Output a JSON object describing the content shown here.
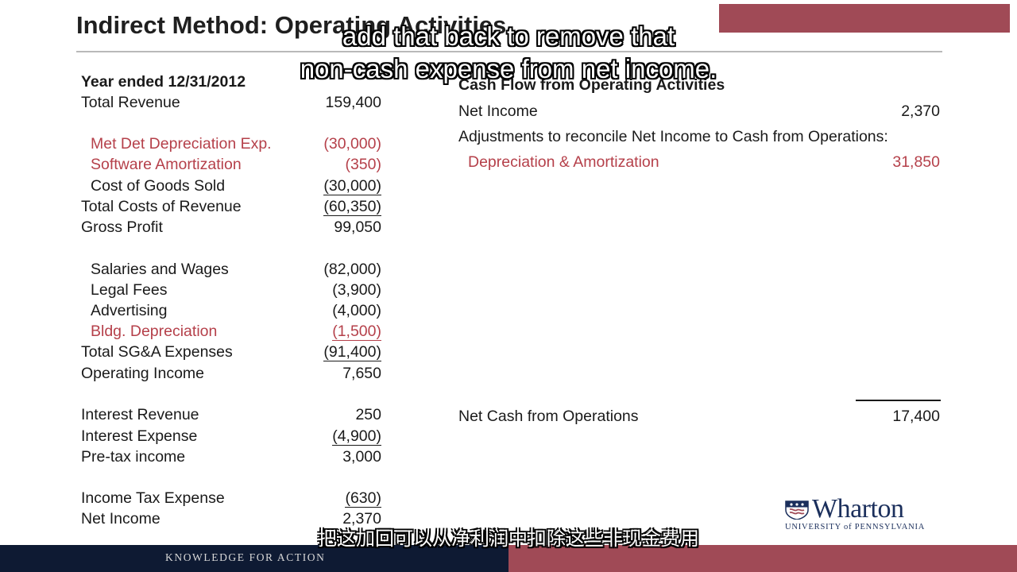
{
  "slide": {
    "title": "Indirect Method: Operating Activities"
  },
  "captions": {
    "english_line_1": "add that back to remove that",
    "english_line_2": "non-cash expense from net income.",
    "chinese": "把这加回可以从净利润中扣除这些非现金费用"
  },
  "income_statement": {
    "header": "Year ended 12/31/2012",
    "rows": [
      {
        "label": "Total Revenue",
        "value": "159,400"
      },
      {
        "label": "Met Det Depreciation Exp.",
        "value": "(30,000)"
      },
      {
        "label": "Software Amortization",
        "value": "(350)"
      },
      {
        "label": "Cost of Goods Sold",
        "value": "(30,000)"
      },
      {
        "label": "Total Costs of Revenue",
        "value": "(60,350)"
      },
      {
        "label": "Gross Profit",
        "value": "99,050"
      },
      {
        "label": "Salaries and Wages",
        "value": "(82,000)"
      },
      {
        "label": "Legal Fees",
        "value": "(3,900)"
      },
      {
        "label": "Advertising",
        "value": "(4,000)"
      },
      {
        "label": "Bldg. Depreciation",
        "value": "(1,500)"
      },
      {
        "label": "Total SG&A Expenses",
        "value": "(91,400)"
      },
      {
        "label": "Operating Income",
        "value": "7,650"
      },
      {
        "label": "Interest Revenue",
        "value": "250"
      },
      {
        "label": "Interest Expense",
        "value": "(4,900)"
      },
      {
        "label": "Pre-tax income",
        "value": "3,000"
      },
      {
        "label": "Income Tax Expense",
        "value": "(630)"
      },
      {
        "label": "Net Income",
        "value": "2,370"
      }
    ]
  },
  "cash_flow": {
    "header": "Cash Flow from Operating Activities",
    "net_income_label": "Net Income",
    "net_income_value": "2,370",
    "adjustments_label": "Adjustments to reconcile Net Income to Cash from Operations:",
    "dep_amort_label": "Depreciation & Amortization",
    "dep_amort_value": "31,850",
    "net_cash_label": "Net Cash from Operations",
    "net_cash_value": "17,400"
  },
  "logo": {
    "name": "Wharton",
    "subtitle": "UNIVERSITY of PENNSYLVANIA"
  },
  "footer": {
    "tagline": "KNOWLEDGE FOR ACTION"
  },
  "colors": {
    "accent_red": "#b5404a",
    "footer_navy": "#0e1a33",
    "footer_maroon": "#a04a56",
    "logo_navy": "#1b2f5c"
  }
}
